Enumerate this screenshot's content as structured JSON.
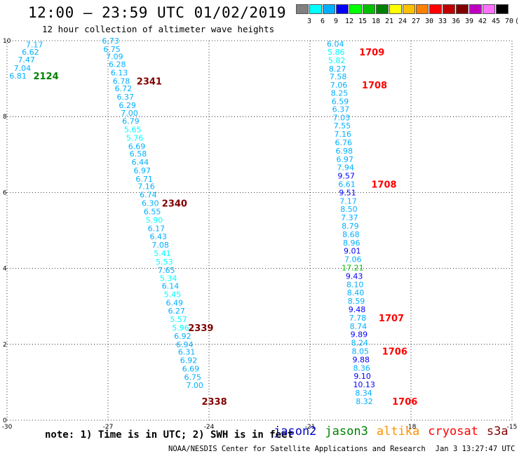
{
  "header": {
    "title": "12:00 – 23:59 UTC 01/02/2019",
    "subtitle": "12 hour collection of altimeter wave heights"
  },
  "color_scale": {
    "labels": [
      "3",
      "6",
      "9",
      "12",
      "15",
      "18",
      "21",
      "24",
      "27",
      "30",
      "33",
      "36",
      "39",
      "42",
      "45",
      "70",
      "(ft)"
    ],
    "colors": [
      "#808080",
      "#00ffff",
      "#00b0ff",
      "#0000ff",
      "#00ff00",
      "#00c000",
      "#008000",
      "#ffff00",
      "#ffc000",
      "#ff8000",
      "#ff0000",
      "#c00000",
      "#800000",
      "#c000c0",
      "#ff70ff",
      "#000000"
    ]
  },
  "footer": {
    "note": "note: 1) Time is in UTC; 2) SWH is in feet",
    "legend": [
      {
        "name": "jason2",
        "color": "#0000c0"
      },
      {
        "name": "jason3",
        "color": "#008000"
      },
      {
        "name": "altika",
        "color": "#ff9000"
      },
      {
        "name": "cryosat",
        "color": "#ff0000"
      },
      {
        "name": "s3a",
        "color": "#800000"
      }
    ],
    "credit": "NOAA/NESDIS Center for Satellite Applications and Research",
    "timestamp": "Jan  3 13:27:47 UTC 2019"
  },
  "chart_data": {
    "type": "scatter",
    "title": "12:00 – 23:59 UTC 01/02/2019",
    "subtitle": "12 hour collection of altimeter wave heights",
    "xlim": [
      -30,
      -15
    ],
    "ylim": [
      0,
      10
    ],
    "x_ticks": [
      "-30",
      "-27",
      "-24",
      "-21",
      "-18",
      "-15"
    ],
    "y_ticks": [
      "0",
      "2",
      "4",
      "6",
      "8",
      "10"
    ],
    "grid": true,
    "series": [
      {
        "name": "jason2",
        "color": "#0000c0"
      },
      {
        "name": "jason3",
        "color": "#008000"
      },
      {
        "name": "altika",
        "color": "#ff9000"
      },
      {
        "name": "cryosat",
        "color": "#ff0000"
      },
      {
        "name": "s3a",
        "color": "#800000"
      }
    ],
    "tracks": [
      {
        "points": [
          {
            "x": -29.44,
            "y": 9.9,
            "v": "7.17",
            "c": "#00b0ff"
          },
          {
            "x": -29.56,
            "y": 9.7,
            "v": "6.62",
            "c": "#00b0ff"
          },
          {
            "x": -29.68,
            "y": 9.5,
            "v": "7.47",
            "c": "#00b0ff"
          },
          {
            "x": -29.8,
            "y": 9.28,
            "v": "7.04",
            "c": "#00b0ff"
          },
          {
            "x": -29.93,
            "y": 9.08,
            "v": "6.81",
            "c": "#00b0ff"
          }
        ]
      },
      {
        "points": [
          {
            "x": -27.18,
            "y": 10.0,
            "v": "6.73",
            "c": "#00b0ff"
          },
          {
            "x": -27.14,
            "y": 9.78,
            "v": "6.75",
            "c": "#00b0ff"
          },
          {
            "x": -27.06,
            "y": 9.58,
            "v": "7.09",
            "c": "#00b0ff"
          },
          {
            "x": -26.98,
            "y": 9.38,
            "v": "6.28",
            "c": "#00b0ff"
          },
          {
            "x": -26.92,
            "y": 9.16,
            "v": "6.13",
            "c": "#00b0ff"
          },
          {
            "x": -26.86,
            "y": 8.94,
            "v": "6.78",
            "c": "#00b0ff"
          },
          {
            "x": -26.8,
            "y": 8.74,
            "v": "6.72",
            "c": "#00b0ff"
          },
          {
            "x": -26.74,
            "y": 8.52,
            "v": "6.37",
            "c": "#00b0ff"
          },
          {
            "x": -26.68,
            "y": 8.3,
            "v": "6.29",
            "c": "#00b0ff"
          },
          {
            "x": -26.62,
            "y": 8.1,
            "v": "7.00",
            "c": "#00b0ff"
          },
          {
            "x": -26.58,
            "y": 7.88,
            "v": "6.79",
            "c": "#00b0ff"
          },
          {
            "x": -26.52,
            "y": 7.66,
            "v": "5.65",
            "c": "#00ffff"
          },
          {
            "x": -26.46,
            "y": 7.44,
            "v": "5.76",
            "c": "#00ffff"
          },
          {
            "x": -26.4,
            "y": 7.22,
            "v": "6.69",
            "c": "#00b0ff"
          },
          {
            "x": -26.36,
            "y": 7.02,
            "v": "6.58",
            "c": "#00b0ff"
          },
          {
            "x": -26.3,
            "y": 6.8,
            "v": "6.44",
            "c": "#00b0ff"
          },
          {
            "x": -26.24,
            "y": 6.58,
            "v": "6.97",
            "c": "#00b0ff"
          },
          {
            "x": -26.18,
            "y": 6.36,
            "v": "6.71",
            "c": "#00b0ff"
          },
          {
            "x": -26.12,
            "y": 6.16,
            "v": "7.16",
            "c": "#00b0ff"
          },
          {
            "x": -26.06,
            "y": 5.94,
            "v": "6.74",
            "c": "#00b0ff"
          },
          {
            "x": -26.0,
            "y": 5.72,
            "v": "6.30",
            "c": "#00b0ff"
          },
          {
            "x": -25.94,
            "y": 5.5,
            "v": "6.55",
            "c": "#00b0ff"
          },
          {
            "x": -25.88,
            "y": 5.28,
            "v": "5.90",
            "c": "#00ffff"
          },
          {
            "x": -25.82,
            "y": 5.06,
            "v": "6.17",
            "c": "#00b0ff"
          },
          {
            "x": -25.76,
            "y": 4.84,
            "v": "6.43",
            "c": "#00b0ff"
          },
          {
            "x": -25.7,
            "y": 4.62,
            "v": "7.08",
            "c": "#00b0ff"
          },
          {
            "x": -25.64,
            "y": 4.4,
            "v": "5.41",
            "c": "#00ffff"
          },
          {
            "x": -25.58,
            "y": 4.18,
            "v": "5.53",
            "c": "#00ffff"
          },
          {
            "x": -25.52,
            "y": 3.96,
            "v": "7.65",
            "c": "#00b0ff"
          },
          {
            "x": -25.46,
            "y": 3.74,
            "v": "5.34",
            "c": "#00ffff"
          },
          {
            "x": -25.4,
            "y": 3.54,
            "v": "6.14",
            "c": "#00b0ff"
          },
          {
            "x": -25.34,
            "y": 3.32,
            "v": "5.45",
            "c": "#00ffff"
          },
          {
            "x": -25.28,
            "y": 3.1,
            "v": "6.49",
            "c": "#00b0ff"
          },
          {
            "x": -25.22,
            "y": 2.88,
            "v": "6.27",
            "c": "#00b0ff"
          },
          {
            "x": -25.16,
            "y": 2.66,
            "v": "5.57",
            "c": "#00ffff"
          },
          {
            "x": -25.1,
            "y": 2.44,
            "v": "5.96",
            "c": "#00ffff"
          },
          {
            "x": -25.04,
            "y": 2.22,
            "v": "6.92",
            "c": "#00b0ff"
          },
          {
            "x": -24.98,
            "y": 2.0,
            "v": "6.94",
            "c": "#00b0ff"
          },
          {
            "x": -24.92,
            "y": 1.8,
            "v": "6.31",
            "c": "#00b0ff"
          },
          {
            "x": -24.86,
            "y": 1.58,
            "v": "6.92",
            "c": "#00b0ff"
          },
          {
            "x": -24.8,
            "y": 1.36,
            "v": "6.69",
            "c": "#00b0ff"
          },
          {
            "x": -24.74,
            "y": 1.14,
            "v": "6.75",
            "c": "#00b0ff"
          },
          {
            "x": -24.68,
            "y": 0.92,
            "v": "7.00",
            "c": "#00b0ff"
          }
        ]
      },
      {
        "points": [
          {
            "x": -20.5,
            "y": 9.92,
            "v": "6.04",
            "c": "#00b0ff"
          },
          {
            "x": -20.48,
            "y": 9.7,
            "v": "5.86",
            "c": "#00ffff"
          },
          {
            "x": -20.46,
            "y": 9.48,
            "v": "5.82",
            "c": "#00ffff"
          },
          {
            "x": -20.44,
            "y": 9.26,
            "v": "8.27",
            "c": "#00b0ff"
          },
          {
            "x": -20.42,
            "y": 9.06,
            "v": "7.58",
            "c": "#00b0ff"
          },
          {
            "x": -20.4,
            "y": 8.84,
            "v": "7.06",
            "c": "#00b0ff"
          },
          {
            "x": -20.38,
            "y": 8.62,
            "v": "8.25",
            "c": "#00b0ff"
          },
          {
            "x": -20.36,
            "y": 8.4,
            "v": "6.59",
            "c": "#00b0ff"
          },
          {
            "x": -20.34,
            "y": 8.2,
            "v": "6.37",
            "c": "#00b0ff"
          },
          {
            "x": -20.32,
            "y": 7.98,
            "v": "7.03",
            "c": "#00b0ff"
          },
          {
            "x": -20.3,
            "y": 7.76,
            "v": "7.55",
            "c": "#00b0ff"
          },
          {
            "x": -20.28,
            "y": 7.54,
            "v": "7.16",
            "c": "#00b0ff"
          },
          {
            "x": -20.26,
            "y": 7.32,
            "v": "6.76",
            "c": "#00b0ff"
          },
          {
            "x": -20.24,
            "y": 7.1,
            "v": "6.98",
            "c": "#00b0ff"
          },
          {
            "x": -20.22,
            "y": 6.88,
            "v": "6.97",
            "c": "#00b0ff"
          },
          {
            "x": -20.2,
            "y": 6.66,
            "v": "7.94",
            "c": "#00b0ff"
          },
          {
            "x": -20.18,
            "y": 6.44,
            "v": "9.57",
            "c": "#0000ff"
          },
          {
            "x": -20.16,
            "y": 6.22,
            "v": "6.61",
            "c": "#00b0ff"
          },
          {
            "x": -20.14,
            "y": 6.0,
            "v": "9.51",
            "c": "#0000ff"
          },
          {
            "x": -20.12,
            "y": 5.78,
            "v": "7.17",
            "c": "#00b0ff"
          },
          {
            "x": -20.1,
            "y": 5.56,
            "v": "8.50",
            "c": "#00b0ff"
          },
          {
            "x": -20.08,
            "y": 5.34,
            "v": "7.37",
            "c": "#00b0ff"
          },
          {
            "x": -20.06,
            "y": 5.12,
            "v": "8.79",
            "c": "#00b0ff"
          },
          {
            "x": -20.04,
            "y": 4.9,
            "v": "8.68",
            "c": "#00b0ff"
          },
          {
            "x": -20.02,
            "y": 4.68,
            "v": "8.96",
            "c": "#00b0ff"
          },
          {
            "x": -20.0,
            "y": 4.46,
            "v": "9.01",
            "c": "#0000ff"
          },
          {
            "x": -19.98,
            "y": 4.24,
            "v": "7.06",
            "c": "#00b0ff"
          },
          {
            "x": -20.06,
            "y": 4.02,
            "v": "17.21",
            "c": "#00c000"
          },
          {
            "x": -19.94,
            "y": 3.8,
            "v": "9.43",
            "c": "#0000ff"
          },
          {
            "x": -19.92,
            "y": 3.58,
            "v": "8.10",
            "c": "#00b0ff"
          },
          {
            "x": -19.9,
            "y": 3.36,
            "v": "8.40",
            "c": "#00b0ff"
          },
          {
            "x": -19.88,
            "y": 3.14,
            "v": "8.59",
            "c": "#00b0ff"
          },
          {
            "x": -19.86,
            "y": 2.92,
            "v": "9.48",
            "c": "#0000ff"
          },
          {
            "x": -19.84,
            "y": 2.7,
            "v": "7.78",
            "c": "#00b0ff"
          },
          {
            "x": -19.82,
            "y": 2.48,
            "v": "8.74",
            "c": "#00b0ff"
          },
          {
            "x": -19.8,
            "y": 2.26,
            "v": "9.89",
            "c": "#0000ff"
          },
          {
            "x": -19.78,
            "y": 2.04,
            "v": "8.24",
            "c": "#00b0ff"
          },
          {
            "x": -19.76,
            "y": 1.82,
            "v": "8.05",
            "c": "#00b0ff"
          },
          {
            "x": -19.74,
            "y": 1.6,
            "v": "9.88",
            "c": "#0000ff"
          },
          {
            "x": -19.72,
            "y": 1.38,
            "v": "8.36",
            "c": "#00b0ff"
          },
          {
            "x": -19.7,
            "y": 1.16,
            "v": "9.10",
            "c": "#0000ff"
          },
          {
            "x": -19.72,
            "y": 0.94,
            "v": "10.13",
            "c": "#0000ff"
          },
          {
            "x": -19.66,
            "y": 0.72,
            "v": "8.34",
            "c": "#00b0ff"
          },
          {
            "x": -19.64,
            "y": 0.5,
            "v": "8.32",
            "c": "#00b0ff"
          }
        ]
      }
    ],
    "annotations": [
      {
        "text": "2124",
        "x": -29.22,
        "y": 9.08,
        "color": "#008000"
      },
      {
        "text": "2341",
        "x": -26.15,
        "y": 8.94,
        "color": "#800000"
      },
      {
        "text": "2340",
        "x": -25.4,
        "y": 5.72,
        "color": "#800000"
      },
      {
        "text": "2339",
        "x": -24.62,
        "y": 2.44,
        "color": "#800000"
      },
      {
        "text": "2338",
        "x": -24.22,
        "y": 0.5,
        "color": "#800000"
      },
      {
        "text": "1709",
        "x": -19.54,
        "y": 9.7,
        "color": "#ff0000"
      },
      {
        "text": "1708",
        "x": -19.46,
        "y": 8.84,
        "color": "#ff0000"
      },
      {
        "text": "1708",
        "x": -19.18,
        "y": 6.22,
        "color": "#ff0000"
      },
      {
        "text": "1707",
        "x": -18.96,
        "y": 2.7,
        "color": "#ff0000"
      },
      {
        "text": "1706",
        "x": -18.86,
        "y": 1.82,
        "color": "#ff0000"
      },
      {
        "text": "1706",
        "x": -18.56,
        "y": 0.5,
        "color": "#ff0000"
      }
    ]
  }
}
